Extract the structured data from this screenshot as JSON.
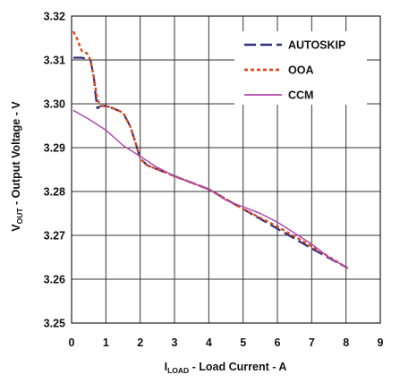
{
  "chart_data": {
    "type": "line",
    "xlabel": {
      "main": "I",
      "sub": "LOAD",
      "rest": " - Load Current - A"
    },
    "ylabel": {
      "main": "V",
      "sub": "OUT",
      "rest": " - Output Voltage - V"
    },
    "xlim": [
      0,
      9
    ],
    "ylim": [
      3.25,
      3.32
    ],
    "x_ticks": [
      "0",
      "1",
      "2",
      "3",
      "4",
      "5",
      "6",
      "7",
      "8",
      "9"
    ],
    "y_ticks": [
      "3.25",
      "3.26",
      "3.27",
      "3.28",
      "3.29",
      "3.30",
      "3.31",
      "3.32"
    ],
    "grid": true,
    "legend_position": "top-right",
    "series": [
      {
        "name": "AUTOSKIP",
        "color": "#2e2e7a",
        "style": "long-dash",
        "x": [
          0.05,
          0.3,
          0.55,
          0.65,
          0.7,
          0.75,
          0.85,
          1.0,
          1.2,
          1.5,
          1.7,
          1.85,
          2.0,
          2.2,
          3.0,
          4.0,
          5.0,
          6.0,
          7.0,
          8.05
        ],
        "y": [
          3.3105,
          3.3105,
          3.31,
          3.306,
          3.302,
          3.299,
          3.2995,
          3.2995,
          3.299,
          3.298,
          3.295,
          3.2915,
          3.2875,
          3.286,
          3.2835,
          3.2805,
          3.276,
          3.2715,
          3.267,
          3.2625
        ]
      },
      {
        "name": "OOA",
        "color": "#e04a1c",
        "style": "dotted",
        "x": [
          0.05,
          0.15,
          0.3,
          0.45,
          0.55,
          0.65,
          0.75,
          0.85,
          1.0,
          1.2,
          1.5,
          1.7,
          1.85,
          2.0,
          2.2,
          3.0,
          4.0,
          5.0,
          6.0,
          7.0,
          8.05
        ],
        "y": [
          3.3165,
          3.315,
          3.312,
          3.3115,
          3.31,
          3.306,
          3.301,
          3.2995,
          3.2995,
          3.299,
          3.298,
          3.295,
          3.2915,
          3.2875,
          3.286,
          3.2835,
          3.2805,
          3.276,
          3.272,
          3.2675,
          3.2625
        ]
      },
      {
        "name": "CCM",
        "color": "#b04ab0",
        "style": "solid",
        "x": [
          0.05,
          0.5,
          1.0,
          1.5,
          2.0,
          2.5,
          3.0,
          3.5,
          4.0,
          4.5,
          5.0,
          5.5,
          6.0,
          6.5,
          7.0,
          7.5,
          8.05
        ],
        "y": [
          3.2985,
          3.2965,
          3.294,
          3.2905,
          3.288,
          3.2855,
          3.2835,
          3.282,
          3.2805,
          3.278,
          3.2765,
          3.275,
          3.273,
          3.2705,
          3.268,
          3.265,
          3.2625
        ]
      }
    ]
  }
}
